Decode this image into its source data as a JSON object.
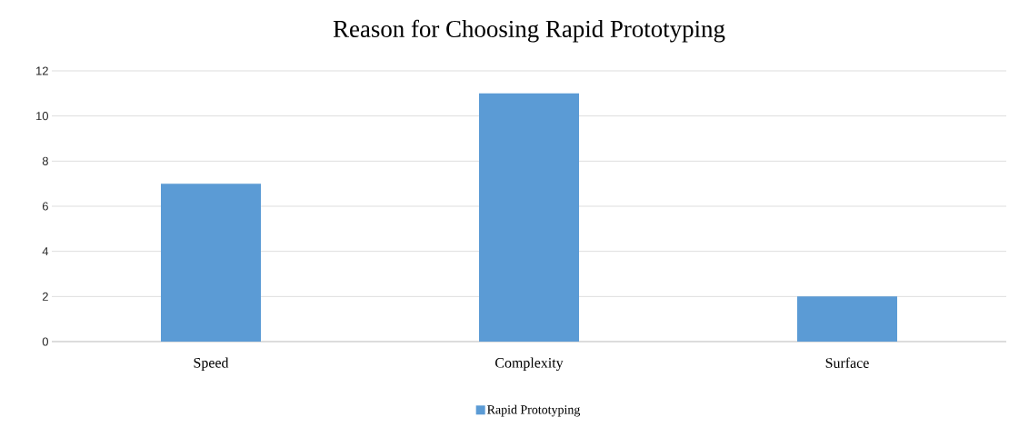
{
  "chart_data": {
    "type": "bar",
    "title": "Reason for Choosing Rapid Prototyping",
    "categories": [
      "Speed",
      "Complexity",
      "Surface"
    ],
    "series": [
      {
        "name": "Rapid Prototyping",
        "color": "#5b9bd5",
        "values": [
          7,
          11,
          2
        ]
      }
    ],
    "ylim": [
      0,
      12
    ],
    "yticks": [
      0,
      2,
      4,
      6,
      8,
      10,
      12
    ],
    "grid": "y",
    "legend": "bottom"
  }
}
